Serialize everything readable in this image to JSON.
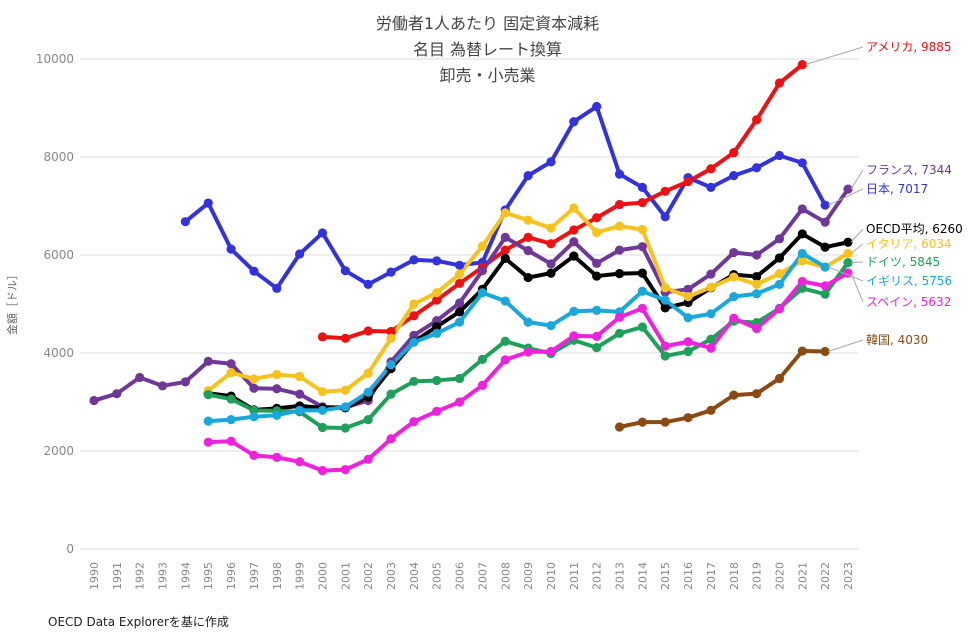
{
  "chart_data": {
    "type": "line",
    "title": [
      "労働者1人あたり 固定資本減耗",
      "名目 為替レート換算",
      "卸売・小売業"
    ],
    "ylabel": "金額［ドル］",
    "xlabel": "",
    "ylim": [
      0,
      10000
    ],
    "yticks": [
      0,
      2000,
      4000,
      6000,
      8000,
      10000
    ],
    "grid": true,
    "x": [
      1990,
      1991,
      1992,
      1993,
      1994,
      1995,
      1996,
      1997,
      1998,
      1999,
      2000,
      2001,
      2002,
      2003,
      2004,
      2005,
      2006,
      2007,
      2008,
      2009,
      2010,
      2011,
      2012,
      2013,
      2014,
      2015,
      2016,
      2017,
      2018,
      2019,
      2020,
      2021,
      2022,
      2023
    ],
    "series": [
      {
        "name": "日本",
        "label": "日本, 7017",
        "color": "#3333dd",
        "values": [
          null,
          null,
          null,
          null,
          6680,
          7060,
          6120,
          5670,
          5320,
          6020,
          6450,
          5680,
          5400,
          5650,
          5900,
          5880,
          5790,
          5850,
          6920,
          7620,
          7900,
          8720,
          9030,
          7650,
          7380,
          6780,
          7580,
          7380,
          7620,
          7780,
          8030,
          7880,
          7017,
          null
        ]
      },
      {
        "name": "アメリカ",
        "label": "アメリカ, 9885",
        "color": "#ee1111",
        "values": [
          null,
          null,
          null,
          null,
          null,
          null,
          null,
          null,
          null,
          null,
          4330,
          4300,
          4450,
          4440,
          4760,
          5080,
          5420,
          5750,
          6100,
          6360,
          6230,
          6510,
          6760,
          7030,
          7070,
          7300,
          7500,
          7760,
          8090,
          8760,
          9510,
          9885,
          null,
          null
        ]
      },
      {
        "name": "フランス",
        "label": "フランス, 7344",
        "color": "#6f3898",
        "values": [
          3030,
          3170,
          3500,
          3330,
          3410,
          3830,
          3780,
          3280,
          3270,
          3160,
          2900,
          2890,
          3030,
          3820,
          4360,
          4660,
          5020,
          5680,
          6360,
          6090,
          5820,
          6270,
          5830,
          6100,
          6170,
          5240,
          5300,
          5610,
          6050,
          6000,
          6330,
          6940,
          6670,
          7344
        ]
      },
      {
        "name": "OECD平均",
        "label": "OECD平均, 6260",
        "color": "#000000",
        "values": [
          null,
          null,
          null,
          null,
          null,
          3180,
          3120,
          2840,
          2870,
          2920,
          2880,
          2880,
          3100,
          3680,
          4230,
          4540,
          4840,
          5300,
          5930,
          5540,
          5630,
          5980,
          5570,
          5620,
          5630,
          4920,
          5030,
          5330,
          5600,
          5560,
          5940,
          6430,
          6160,
          6260
        ]
      },
      {
        "name": "イタリア",
        "label": "イタリア, 6034",
        "color": "#f7c21d",
        "values": [
          null,
          null,
          null,
          null,
          null,
          3230,
          3600,
          3470,
          3560,
          3520,
          3210,
          3240,
          3590,
          4300,
          5000,
          5230,
          5610,
          6180,
          6860,
          6710,
          6550,
          6960,
          6460,
          6590,
          6520,
          5330,
          5150,
          5340,
          5550,
          5400,
          5620,
          5880,
          5750,
          6034
        ]
      },
      {
        "name": "ドイツ",
        "label": "ドイツ, 5845",
        "color": "#1ea05a",
        "values": [
          null,
          null,
          null,
          null,
          null,
          3150,
          3060,
          2830,
          2820,
          2800,
          2480,
          2470,
          2640,
          3160,
          3420,
          3440,
          3480,
          3870,
          4240,
          4100,
          3990,
          4260,
          4110,
          4400,
          4530,
          3940,
          4030,
          4280,
          4650,
          4620,
          4910,
          5320,
          5200,
          5845
        ]
      },
      {
        "name": "イギリス",
        "label": "イギリス, 5756",
        "color": "#19a7dc",
        "values": [
          null,
          null,
          null,
          null,
          null,
          2610,
          2640,
          2700,
          2730,
          2830,
          2830,
          2900,
          3200,
          3760,
          4220,
          4400,
          4630,
          5230,
          5060,
          4630,
          4560,
          4850,
          4870,
          4840,
          5260,
          5080,
          4720,
          4800,
          5150,
          5210,
          5400,
          6030,
          5756,
          null
        ]
      },
      {
        "name": "スペイン",
        "label": "スペイン, 5632",
        "color": "#ee22dd",
        "values": [
          null,
          null,
          null,
          null,
          null,
          2180,
          2200,
          1910,
          1870,
          1780,
          1600,
          1620,
          1830,
          2250,
          2600,
          2810,
          3000,
          3340,
          3860,
          4020,
          4030,
          4350,
          4340,
          4730,
          4910,
          4140,
          4230,
          4100,
          4710,
          4500,
          4900,
          5460,
          5370,
          5632
        ]
      },
      {
        "name": "韓国",
        "label": "韓国, 4030",
        "color": "#8a4a12",
        "values": [
          null,
          null,
          null,
          null,
          null,
          null,
          null,
          null,
          null,
          null,
          null,
          null,
          null,
          null,
          null,
          null,
          null,
          null,
          null,
          null,
          null,
          null,
          null,
          2490,
          2590,
          2590,
          2680,
          2830,
          3140,
          3170,
          3480,
          4040,
          4030,
          null
        ]
      }
    ]
  },
  "source": "OECD Data Explorerを基に作成"
}
